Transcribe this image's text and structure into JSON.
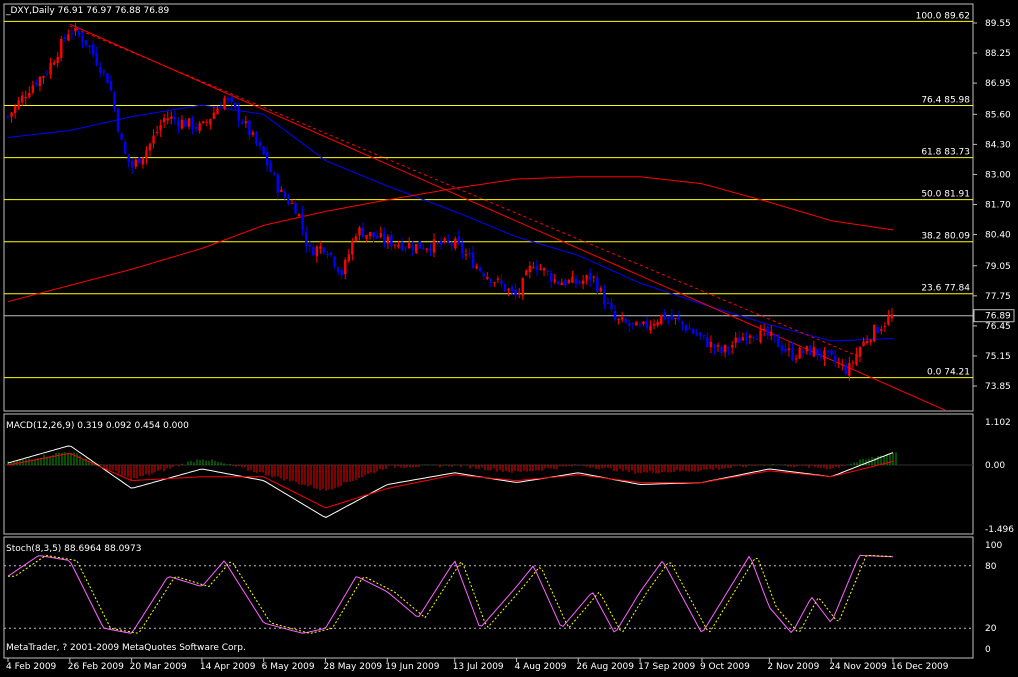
{
  "colors": {
    "background": "#000000",
    "axis": "#c0c0c0",
    "text": "#ffffff",
    "bull_candle": "#ff0000",
    "bear_candle": "#0000ff",
    "fib": "#ffff00",
    "ma_fast": "#0000ff",
    "ma_slow": "#ff0000",
    "trendline": "#ff0000",
    "price_line": "#c0c0c0",
    "macd_line": "#ffffff",
    "macd_signal": "#ff0000",
    "macd_hist_up": "#00a000",
    "macd_hist_down": "#ff0000",
    "stoch_main": "#ff66ff",
    "stoch_signal": "#ffff00"
  },
  "main_pane": {
    "title": "_DXY,Daily  76.91 76.97 76.88 76.89",
    "price_tag": "76.89",
    "copyright": "MetaTrader, ? 2001-2009 MetaQuotes Software Corp.",
    "y_ticks": [
      "89.55",
      "88.25",
      "86.95",
      "85.60",
      "84.30",
      "83.00",
      "81.70",
      "80.40",
      "79.05",
      "77.75",
      "76.45",
      "75.15",
      "73.85"
    ]
  },
  "fibonacci": [
    {
      "label": "100.0  89.62",
      "level": 89.62
    },
    {
      "label": "76.4  85.98",
      "level": 85.98
    },
    {
      "label": "61.8  83.73",
      "level": 83.73
    },
    {
      "label": "50.0  81.91",
      "level": 81.91
    },
    {
      "label": "38.2  80.09",
      "level": 80.09
    },
    {
      "label": "23.6  77.84",
      "level": 77.84
    },
    {
      "label": "0.0  74.21",
      "level": 74.21
    }
  ],
  "macd_pane": {
    "title": "MACD(12,26,9) 0.319 0.092 0.454 0.000",
    "y_ticks": [
      "1.102",
      "0.00",
      "-1.496"
    ]
  },
  "stoch_pane": {
    "title": "Stoch(8,3,5) 88.6964 88.0973",
    "y_ticks": [
      "100",
      "80",
      "20",
      "0"
    ]
  },
  "x_axis": {
    "labels": [
      "4 Feb 2009",
      "26 Feb 2009",
      "20 Mar 2009",
      "14 Apr 2009",
      "6 May 2009",
      "28 May 2009",
      "19 Jun 2009",
      "13 Jul 2009",
      "4 Aug 2009",
      "26 Aug 2009",
      "17 Sep 2009",
      "9 Oct 2009",
      "2 Nov 2009",
      "24 Nov 2009",
      "16 Dec 2009"
    ]
  },
  "chart_data": {
    "type": "candlestick",
    "symbol": "_DXY",
    "timeframe": "Daily",
    "last_ohlc": {
      "open": 76.91,
      "high": 76.97,
      "low": 76.88,
      "close": 76.89
    },
    "ylim": [
      73.5,
      90.0
    ],
    "close_anchors": [
      {
        "date": "4 Feb 2009",
        "close": 85.5
      },
      {
        "date": "12 Feb 2009",
        "close": 86.8
      },
      {
        "date": "18 Feb 2009",
        "close": 87.5
      },
      {
        "date": "26 Feb 2009",
        "close": 89.3
      },
      {
        "date": "4 Mar 2009",
        "close": 88.7
      },
      {
        "date": "12 Mar 2009",
        "close": 87.0
      },
      {
        "date": "17 Mar 2009",
        "close": 84.0
      },
      {
        "date": "20 Mar 2009",
        "close": 83.3
      },
      {
        "date": "26 Mar 2009",
        "close": 84.2
      },
      {
        "date": "1 Apr 2009",
        "close": 85.5
      },
      {
        "date": "14 Apr 2009",
        "close": 85.0
      },
      {
        "date": "22 Apr 2009",
        "close": 86.3
      },
      {
        "date": "28 Apr 2009",
        "close": 85.4
      },
      {
        "date": "6 May 2009",
        "close": 83.8
      },
      {
        "date": "12 May 2009",
        "close": 82.2
      },
      {
        "date": "18 May 2009",
        "close": 81.5
      },
      {
        "date": "22 May 2009",
        "close": 79.7
      },
      {
        "date": "28 May 2009",
        "close": 79.9
      },
      {
        "date": "3 Jun 2009",
        "close": 78.7
      },
      {
        "date": "8 Jun 2009",
        "close": 80.6
      },
      {
        "date": "19 Jun 2009",
        "close": 80.1
      },
      {
        "date": "30 Jun 2009",
        "close": 79.9
      },
      {
        "date": "13 Jul 2009",
        "close": 80.0
      },
      {
        "date": "22 Jul 2009",
        "close": 78.9
      },
      {
        "date": "4 Aug 2009",
        "close": 77.7
      },
      {
        "date": "10 Aug 2009",
        "close": 79.2
      },
      {
        "date": "18 Aug 2009",
        "close": 78.4
      },
      {
        "date": "26 Aug 2009",
        "close": 78.3
      },
      {
        "date": "31 Aug 2009",
        "close": 78.6
      },
      {
        "date": "8 Sep 2009",
        "close": 76.7
      },
      {
        "date": "17 Sep 2009",
        "close": 76.3
      },
      {
        "date": "25 Sep 2009",
        "close": 76.9
      },
      {
        "date": "1 Oct 2009",
        "close": 76.6
      },
      {
        "date": "9 Oct 2009",
        "close": 75.9
      },
      {
        "date": "16 Oct 2009",
        "close": 75.3
      },
      {
        "date": "26 Oct 2009",
        "close": 76.2
      },
      {
        "date": "2 Nov 2009",
        "close": 76.0
      },
      {
        "date": "10 Nov 2009",
        "close": 75.2
      },
      {
        "date": "17 Nov 2009",
        "close": 75.4
      },
      {
        "date": "24 Nov 2009",
        "close": 75.0
      },
      {
        "date": "30 Nov 2009",
        "close": 74.5
      },
      {
        "date": "4 Dec 2009",
        "close": 75.5
      },
      {
        "date": "8 Dec 2009",
        "close": 76.1
      },
      {
        "date": "16 Dec 2009",
        "close": 76.89
      }
    ],
    "ma_fast": [
      {
        "date": "4 Feb 2009",
        "value": 84.6
      },
      {
        "date": "26 Feb 2009",
        "value": 84.9
      },
      {
        "date": "20 Mar 2009",
        "value": 85.5
      },
      {
        "date": "14 Apr 2009",
        "value": 86.0
      },
      {
        "date": "6 May 2009",
        "value": 85.6
      },
      {
        "date": "28 May 2009",
        "value": 83.6
      },
      {
        "date": "19 Jun 2009",
        "value": 82.5
      },
      {
        "date": "13 Jul 2009",
        "value": 81.4
      },
      {
        "date": "4 Aug 2009",
        "value": 80.3
      },
      {
        "date": "26 Aug 2009",
        "value": 79.5
      },
      {
        "date": "17 Sep 2009",
        "value": 78.3
      },
      {
        "date": "9 Oct 2009",
        "value": 77.4
      },
      {
        "date": "2 Nov 2009",
        "value": 76.5
      },
      {
        "date": "24 Nov 2009",
        "value": 75.8
      },
      {
        "date": "16 Dec 2009",
        "value": 75.9
      }
    ],
    "ma_slow": [
      {
        "date": "4 Feb 2009",
        "value": 77.5
      },
      {
        "date": "26 Feb 2009",
        "value": 78.2
      },
      {
        "date": "20 Mar 2009",
        "value": 78.9
      },
      {
        "date": "14 Apr 2009",
        "value": 79.8
      },
      {
        "date": "6 May 2009",
        "value": 80.8
      },
      {
        "date": "28 May 2009",
        "value": 81.4
      },
      {
        "date": "19 Jun 2009",
        "value": 81.9
      },
      {
        "date": "13 Jul 2009",
        "value": 82.4
      },
      {
        "date": "4 Aug 2009",
        "value": 82.8
      },
      {
        "date": "26 Aug 2009",
        "value": 82.9
      },
      {
        "date": "17 Sep 2009",
        "value": 82.9
      },
      {
        "date": "9 Oct 2009",
        "value": 82.6
      },
      {
        "date": "2 Nov 2009",
        "value": 81.8
      },
      {
        "date": "24 Nov 2009",
        "value": 81.0
      },
      {
        "date": "16 Dec 2009",
        "value": 80.6
      }
    ],
    "trendline": [
      {
        "date": "26 Feb 2009",
        "value": 89.5
      },
      {
        "date": "16 Dec 2009",
        "value": 73.8
      }
    ],
    "macd": [
      {
        "date": "4 Feb 2009",
        "value": 0.05
      },
      {
        "date": "26 Feb 2009",
        "value": 0.5
      },
      {
        "date": "20 Mar 2009",
        "value": -0.6
      },
      {
        "date": "14 Apr 2009",
        "value": -0.1
      },
      {
        "date": "6 May 2009",
        "value": -0.4
      },
      {
        "date": "28 May 2009",
        "value": -1.35
      },
      {
        "date": "19 Jun 2009",
        "value": -0.5
      },
      {
        "date": "13 Jul 2009",
        "value": -0.2
      },
      {
        "date": "4 Aug 2009",
        "value": -0.45
      },
      {
        "date": "26 Aug 2009",
        "value": -0.2
      },
      {
        "date": "17 Sep 2009",
        "value": -0.5
      },
      {
        "date": "9 Oct 2009",
        "value": -0.45
      },
      {
        "date": "2 Nov 2009",
        "value": -0.1
      },
      {
        "date": "24 Nov 2009",
        "value": -0.3
      },
      {
        "date": "16 Dec 2009",
        "value": 0.319
      }
    ],
    "macd_signal": [
      {
        "date": "4 Feb 2009",
        "value": 0.0
      },
      {
        "date": "26 Feb 2009",
        "value": 0.3
      },
      {
        "date": "20 Mar 2009",
        "value": -0.4
      },
      {
        "date": "14 Apr 2009",
        "value": -0.3
      },
      {
        "date": "6 May 2009",
        "value": -0.3
      },
      {
        "date": "28 May 2009",
        "value": -1.1
      },
      {
        "date": "19 Jun 2009",
        "value": -0.6
      },
      {
        "date": "13 Jul 2009",
        "value": -0.25
      },
      {
        "date": "4 Aug 2009",
        "value": -0.4
      },
      {
        "date": "26 Aug 2009",
        "value": -0.25
      },
      {
        "date": "17 Sep 2009",
        "value": -0.45
      },
      {
        "date": "9 Oct 2009",
        "value": -0.45
      },
      {
        "date": "2 Nov 2009",
        "value": -0.15
      },
      {
        "date": "24 Nov 2009",
        "value": -0.3
      },
      {
        "date": "16 Dec 2009",
        "value": 0.092
      }
    ],
    "stoch_main": [
      {
        "date": "4 Feb 2009",
        "value": 70
      },
      {
        "date": "15 Feb 2009",
        "value": 90
      },
      {
        "date": "26 Feb 2009",
        "value": 85
      },
      {
        "date": "10 Mar 2009",
        "value": 20
      },
      {
        "date": "20 Mar 2009",
        "value": 15
      },
      {
        "date": "2 Apr 2009",
        "value": 70
      },
      {
        "date": "14 Apr 2009",
        "value": 60
      },
      {
        "date": "22 Apr 2009",
        "value": 85
      },
      {
        "date": "6 May 2009",
        "value": 25
      },
      {
        "date": "20 May 2009",
        "value": 15
      },
      {
        "date": "28 May 2009",
        "value": 20
      },
      {
        "date": "8 Jun 2009",
        "value": 70
      },
      {
        "date": "19 Jun 2009",
        "value": 55
      },
      {
        "date": "30 Jun 2009",
        "value": 30
      },
      {
        "date": "13 Jul 2009",
        "value": 85
      },
      {
        "date": "22 Jul 2009",
        "value": 20
      },
      {
        "date": "4 Aug 2009",
        "value": 60
      },
      {
        "date": "10 Aug 2009",
        "value": 80
      },
      {
        "date": "20 Aug 2009",
        "value": 20
      },
      {
        "date": "31 Aug 2009",
        "value": 55
      },
      {
        "date": "8 Sep 2009",
        "value": 15
      },
      {
        "date": "17 Sep 2009",
        "value": 55
      },
      {
        "date": "25 Sep 2009",
        "value": 85
      },
      {
        "date": "9 Oct 2009",
        "value": 15
      },
      {
        "date": "26 Oct 2009",
        "value": 90
      },
      {
        "date": "2 Nov 2009",
        "value": 40
      },
      {
        "date": "10 Nov 2009",
        "value": 15
      },
      {
        "date": "17 Nov 2009",
        "value": 50
      },
      {
        "date": "24 Nov 2009",
        "value": 25
      },
      {
        "date": "4 Dec 2009",
        "value": 90
      },
      {
        "date": "16 Dec 2009",
        "value": 88.6964
      }
    ],
    "stoch_signal_last": 88.0973
  }
}
